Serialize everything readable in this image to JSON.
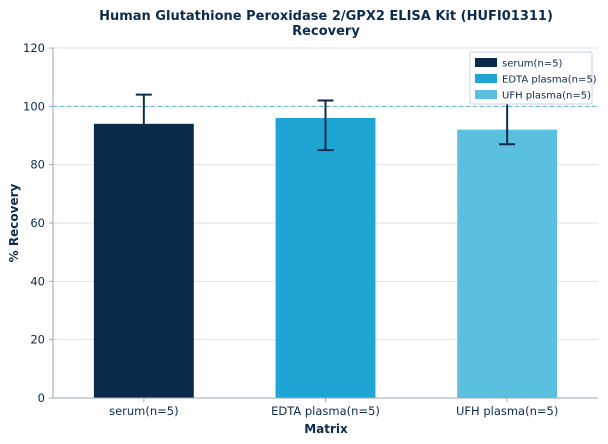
{
  "chart_data": {
    "type": "bar",
    "title": "Human Glutathione Peroxidase 2/GPX2 ELISA Kit (HUFI01311)",
    "subtitle": "Recovery",
    "xlabel": "Matrix",
    "ylabel": "% Recovery",
    "ylim": [
      0,
      120
    ],
    "yticks": [
      0,
      20,
      40,
      60,
      80,
      100,
      120
    ],
    "reference_line": 100,
    "grid": true,
    "legend_position": "top-right",
    "categories": [
      "serum(n=5)",
      "EDTA plasma(n=5)",
      "UFH plasma(n=5)"
    ],
    "values": [
      94,
      96,
      92
    ],
    "error_low": [
      83,
      85,
      87
    ],
    "error_high": [
      104,
      102,
      103
    ],
    "colors": [
      "#0a2a4a",
      "#1fa5d3",
      "#5bbfe0"
    ],
    "legend": [
      "serum(n=5)",
      "EDTA plasma(n=5)",
      "UFH plasma(n=5)"
    ]
  }
}
